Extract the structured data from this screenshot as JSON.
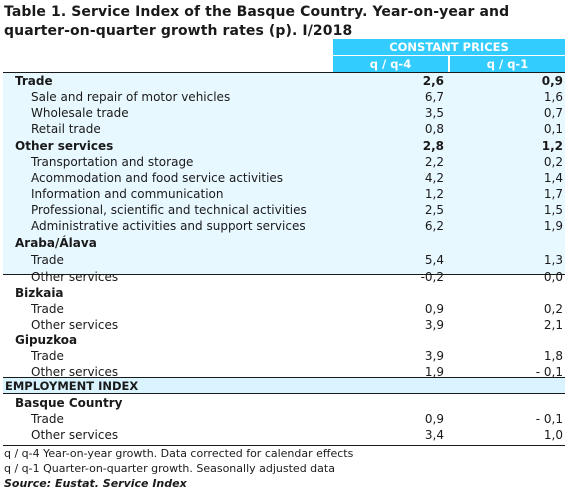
{
  "title_line1": "Table 1. Service Index of the Basque Country. Year-on-year and",
  "title_line2": "quarter-on-quarter growth rates (p). I/2018",
  "header": {
    "constant_prices": "CONSTANT PRICES",
    "col1": "q / q-4",
    "col2": "q / q-1"
  },
  "rows": [
    {
      "label": "Trade",
      "v1": "2,6",
      "v2": "0,9",
      "kind": "grp"
    },
    {
      "label": "Sale and repair of motor vehicles",
      "v1": "6,7",
      "v2": "1,6",
      "kind": "sub"
    },
    {
      "label": "Wholesale trade",
      "v1": "3,5",
      "v2": "0,7",
      "kind": "sub"
    },
    {
      "label": "Retail trade",
      "v1": "0,8",
      "v2": "0,1",
      "kind": "sub"
    },
    {
      "label": "Other services",
      "v1": "2,8",
      "v2": "1,2",
      "kind": "grp"
    },
    {
      "label": "Transportation and storage",
      "v1": "2,2",
      "v2": "0,2",
      "kind": "sub"
    },
    {
      "label": "Acommodation and food service activities",
      "v1": "4,2",
      "v2": "1,4",
      "kind": "sub"
    },
    {
      "label": "Information and communication",
      "v1": "1,2",
      "v2": "1,7",
      "kind": "sub"
    },
    {
      "label": "Professional, scientific and technical activities",
      "v1": "2,5",
      "v2": "1,5",
      "kind": "sub"
    },
    {
      "label": "Administrative activities and support services",
      "v1": "6,2",
      "v2": "1,9",
      "kind": "sub"
    },
    {
      "label": "Araba/Álava",
      "v1": "",
      "v2": "",
      "kind": "grp"
    },
    {
      "label": "Trade",
      "v1": "5,4",
      "v2": "1,3",
      "kind": "sub"
    },
    {
      "label": "Other services",
      "v1": "-0,2",
      "v2": "0,0",
      "kind": "sub"
    },
    {
      "label": "Bizkaia",
      "v1": "",
      "v2": "",
      "kind": "grp"
    },
    {
      "label": "Trade",
      "v1": "0,9",
      "v2": "0,2",
      "kind": "sub"
    },
    {
      "label": "Other services",
      "v1": "3,9",
      "v2": "2,1",
      "kind": "sub"
    },
    {
      "label": "Gipuzkoa",
      "v1": "",
      "v2": "",
      "kind": "grp"
    },
    {
      "label": "Trade",
      "v1": "3,9",
      "v2": "1,8",
      "kind": "sub"
    },
    {
      "label": "Other services",
      "v1": "1,9",
      "v2": "- 0,1",
      "kind": "sub"
    },
    {
      "label": "EMPLOYMENT INDEX",
      "v1": "",
      "v2": "",
      "kind": "major"
    },
    {
      "label": "Basque Country",
      "v1": "",
      "v2": "",
      "kind": "grp"
    },
    {
      "label": "Trade",
      "v1": "0,9",
      "v2": "- 0,1",
      "kind": "sub"
    },
    {
      "label": "Other services",
      "v1": "3,4",
      "v2": "1,0",
      "kind": "sub"
    }
  ],
  "notes": {
    "note1": "q / q-4 Year-on-year growth. Data corrected for calendar effects",
    "note2": "q / q-1 Quarter-on-quarter growth. Seasonally adjusted data",
    "source": "Source: Eustat. Service Index"
  }
}
